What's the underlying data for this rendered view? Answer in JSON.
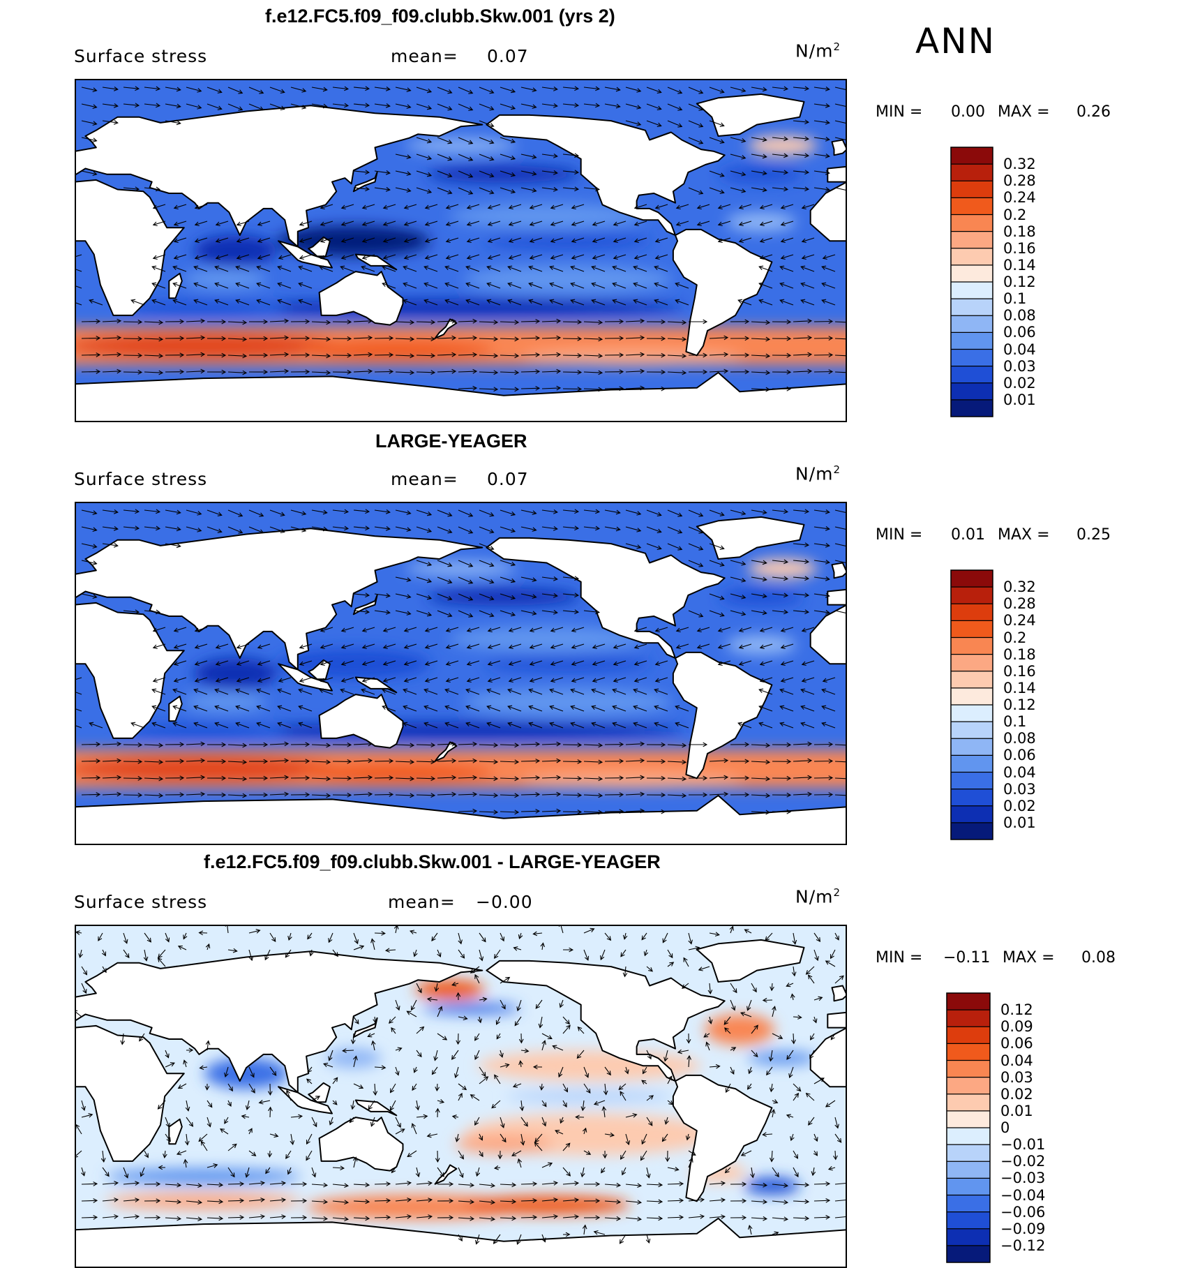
{
  "season": "ANN",
  "panels": [
    {
      "title": "f.e12.FC5.f09_f09.clubb.Skw.001 (yrs 2)",
      "variable": "Surface stress",
      "mean_label": "mean=",
      "mean_value": "0.07",
      "units": "N/m",
      "units_exp": "2",
      "min_label": "MIN =",
      "min_value": "0.00",
      "max_label": "MAX =",
      "max_value": "0.26",
      "colorbar": {
        "labels": [
          "0.32",
          "0.28",
          "0.24",
          "0.2",
          "0.18",
          "0.16",
          "0.14",
          "0.12",
          "0.1",
          "0.08",
          "0.06",
          "0.04",
          "0.03",
          "0.02",
          "0.01"
        ],
        "colors": [
          "#8b0a0a",
          "#b8200c",
          "#dd3d0d",
          "#f05a1c",
          "#f98652",
          "#fca883",
          "#fdcbb0",
          "#fdeadd",
          "#dceefe",
          "#b8d3fa",
          "#8fb6f5",
          "#6195ef",
          "#3a6fe6",
          "#1f4fd6",
          "#0d2fb3",
          "#061a7a"
        ]
      },
      "map_style": "absolute_a"
    },
    {
      "title": "LARGE-YEAGER",
      "variable": "Surface stress",
      "mean_label": "mean=",
      "mean_value": "0.07",
      "units": "N/m",
      "units_exp": "2",
      "min_label": "MIN =",
      "min_value": "0.01",
      "max_label": "MAX =",
      "max_value": "0.25",
      "colorbar": {
        "labels": [
          "0.32",
          "0.28",
          "0.24",
          "0.2",
          "0.18",
          "0.16",
          "0.14",
          "0.12",
          "0.1",
          "0.08",
          "0.06",
          "0.04",
          "0.03",
          "0.02",
          "0.01"
        ],
        "colors": [
          "#8b0a0a",
          "#b8200c",
          "#dd3d0d",
          "#f05a1c",
          "#f98652",
          "#fca883",
          "#fdcbb0",
          "#fdeadd",
          "#dceefe",
          "#b8d3fa",
          "#8fb6f5",
          "#6195ef",
          "#3a6fe6",
          "#1f4fd6",
          "#0d2fb3",
          "#061a7a"
        ]
      },
      "map_style": "absolute_b"
    },
    {
      "title": "f.e12.FC5.f09_f09.clubb.Skw.001 - LARGE-YEAGER",
      "variable": "Surface stress",
      "mean_label": "mean=",
      "mean_value": "−0.00",
      "units": "N/m",
      "units_exp": "2",
      "min_label": "MIN =",
      "min_value": "−0.11",
      "max_label": "MAX =",
      "max_value": "0.08",
      "colorbar": {
        "labels": [
          "0.12",
          "0.09",
          "0.06",
          "0.04",
          "0.03",
          "0.02",
          "0.01",
          "0",
          "−0.01",
          "−0.02",
          "−0.03",
          "−0.04",
          "−0.06",
          "−0.09",
          "−0.12"
        ],
        "colors": [
          "#8b0a0a",
          "#b8200c",
          "#dd3d0d",
          "#f05a1c",
          "#f98652",
          "#fca883",
          "#fdcbb0",
          "#fdeadd",
          "#dceefe",
          "#b8d3fa",
          "#8fb6f5",
          "#6195ef",
          "#3a6fe6",
          "#1f4fd6",
          "#0d2fb3",
          "#061a7a"
        ]
      },
      "map_style": "difference"
    }
  ]
}
